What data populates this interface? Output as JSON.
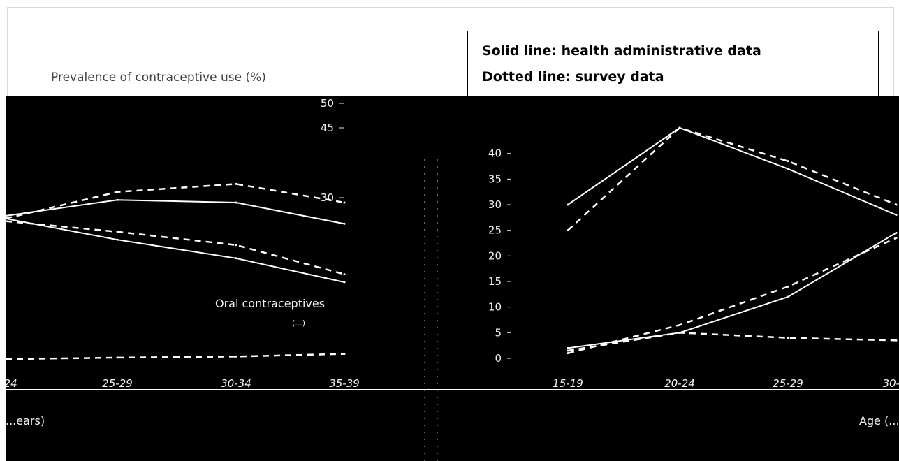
{
  "y_axis_title": "Prevalence of contraceptive use (%)",
  "legend": {
    "line1": "Solid line: health administrative data",
    "line2": "Dotted line: survey data"
  },
  "chart_data": [
    {
      "type": "line",
      "panel": "left",
      "categories": [
        "...24",
        "25-29",
        "30-34",
        "35-39"
      ],
      "series": [
        {
          "name": "",
          "style": "solid",
          "values": [
            27.5,
            30.5,
            30,
            26
          ]
        },
        {
          "name": "",
          "style": "dotted",
          "values": [
            27,
            32,
            33.5,
            30
          ]
        },
        {
          "name": "",
          "style": "solid",
          "values": [
            27,
            23,
            19.5,
            15
          ]
        },
        {
          "name": "",
          "style": "dotted",
          "values": [
            26.5,
            24.5,
            22,
            16.5
          ]
        },
        {
          "name": "",
          "style": "dotted",
          "values": [
            0.5,
            0.8,
            1.0,
            1.5
          ]
        }
      ],
      "annotations": [
        "Oral contraceptives",
        "(...)"
      ],
      "yticks": [
        "50",
        "45",
        "30"
      ],
      "xlabel": "...ears)",
      "ylim": [
        0,
        50
      ]
    },
    {
      "type": "line",
      "panel": "right",
      "categories": [
        "15-19",
        "20-24",
        "25-29",
        "30-..."
      ],
      "series": [
        {
          "name": "",
          "style": "solid",
          "values": [
            30,
            45,
            37,
            28
          ]
        },
        {
          "name": "",
          "style": "dotted",
          "values": [
            25,
            45,
            38.5,
            30
          ]
        },
        {
          "name": "",
          "style": "solid",
          "values": [
            2,
            5,
            12,
            24.5
          ]
        },
        {
          "name": "",
          "style": "dotted",
          "values": [
            1,
            6.5,
            14,
            23.5
          ]
        },
        {
          "name": "",
          "style": "dotted",
          "values": [
            1.5,
            5,
            4,
            3.5
          ]
        }
      ],
      "yticks": [
        0,
        5,
        10,
        15,
        20,
        25,
        30,
        35,
        40
      ],
      "xlabel": "Age (...",
      "ylim": [
        0,
        45
      ]
    }
  ]
}
